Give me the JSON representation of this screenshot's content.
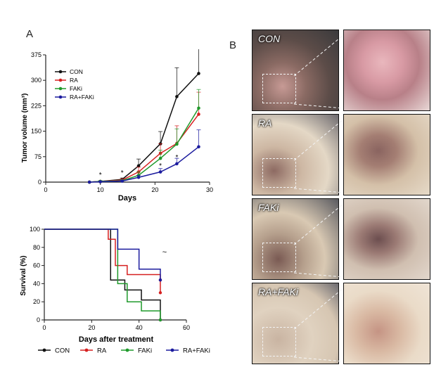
{
  "panel_a_label": "A",
  "panel_b_label": "B",
  "chart_data": [
    {
      "type": "line",
      "xlabel": "Days",
      "ylabel": "Tumor volume (mm³)",
      "xlim": [
        0,
        30
      ],
      "ylim": [
        0,
        375
      ],
      "xticks": [
        0,
        10,
        20,
        30
      ],
      "yticks": [
        0,
        75,
        150,
        225,
        300,
        375
      ],
      "legend_position": "top-left",
      "x": [
        8,
        10,
        14,
        17,
        21,
        24,
        28
      ],
      "series": [
        {
          "name": "CON",
          "color": "#111111",
          "values": [
            0,
            2,
            8,
            48,
            113,
            252,
            320
          ],
          "err": [
            0,
            2,
            4,
            20,
            36,
            85,
            110
          ]
        },
        {
          "name": "RA",
          "color": "#d62020",
          "values": [
            0,
            2,
            6,
            30,
            85,
            114,
            200
          ],
          "err": [
            0,
            2,
            3,
            14,
            28,
            52,
            65
          ]
        },
        {
          "name": "FAKi",
          "color": "#1f9a2b",
          "values": [
            0,
            2,
            4,
            20,
            70,
            112,
            218
          ],
          "err": [
            0,
            2,
            3,
            10,
            24,
            45,
            55
          ]
        },
        {
          "name": "RA+FAKi",
          "color": "#1b1b9e",
          "values": [
            0,
            1,
            3,
            14,
            30,
            54,
            104
          ],
          "err": [
            0,
            1,
            2,
            6,
            10,
            16,
            50
          ]
        }
      ],
      "annotations": [
        {
          "text": "*",
          "x": 10,
          "y": 8
        },
        {
          "text": "*",
          "x": 14,
          "y": 14
        },
        {
          "text": "*",
          "x": 21,
          "y": 35
        },
        {
          "text": "*",
          "x": 24,
          "y": 60
        }
      ]
    },
    {
      "type": "line",
      "subtype": "kaplan-meier",
      "xlabel": "Days after treatment",
      "ylabel": "Survival (%)",
      "xlim": [
        0,
        60
      ],
      "ylim": [
        0,
        100
      ],
      "xticks": [
        0,
        20,
        40,
        60
      ],
      "yticks": [
        0,
        20,
        40,
        60,
        80,
        100
      ],
      "legend_position": "bottom",
      "annotation": "~",
      "series": [
        {
          "name": "CON",
          "color": "#111111",
          "steps": [
            [
              0,
              100
            ],
            [
              28,
              44
            ],
            [
              34,
              33
            ],
            [
              41,
              22
            ],
            [
              49,
              0
            ]
          ]
        },
        {
          "name": "RA",
          "color": "#d62020",
          "steps": [
            [
              0,
              100
            ],
            [
              27,
              89
            ],
            [
              30,
              60
            ],
            [
              35,
              50
            ],
            [
              49,
              30
            ]
          ],
          "censor": [
            [
              49,
              44
            ]
          ]
        },
        {
          "name": "FAKi",
          "color": "#1f9a2b",
          "steps": [
            [
              0,
              100
            ],
            [
              31,
              40
            ],
            [
              35,
              20
            ],
            [
              41,
              10
            ],
            [
              49,
              0
            ]
          ]
        },
        {
          "name": "RA+FAKi",
          "color": "#1b1b9e",
          "steps": [
            [
              0,
              100
            ],
            [
              31,
              78
            ],
            [
              40,
              56
            ],
            [
              49,
              44
            ]
          ]
        }
      ]
    }
  ],
  "photos": [
    {
      "label": "CON"
    },
    {
      "label": "RA"
    },
    {
      "label": "FAKi"
    },
    {
      "label": "RA+FAKi"
    }
  ]
}
